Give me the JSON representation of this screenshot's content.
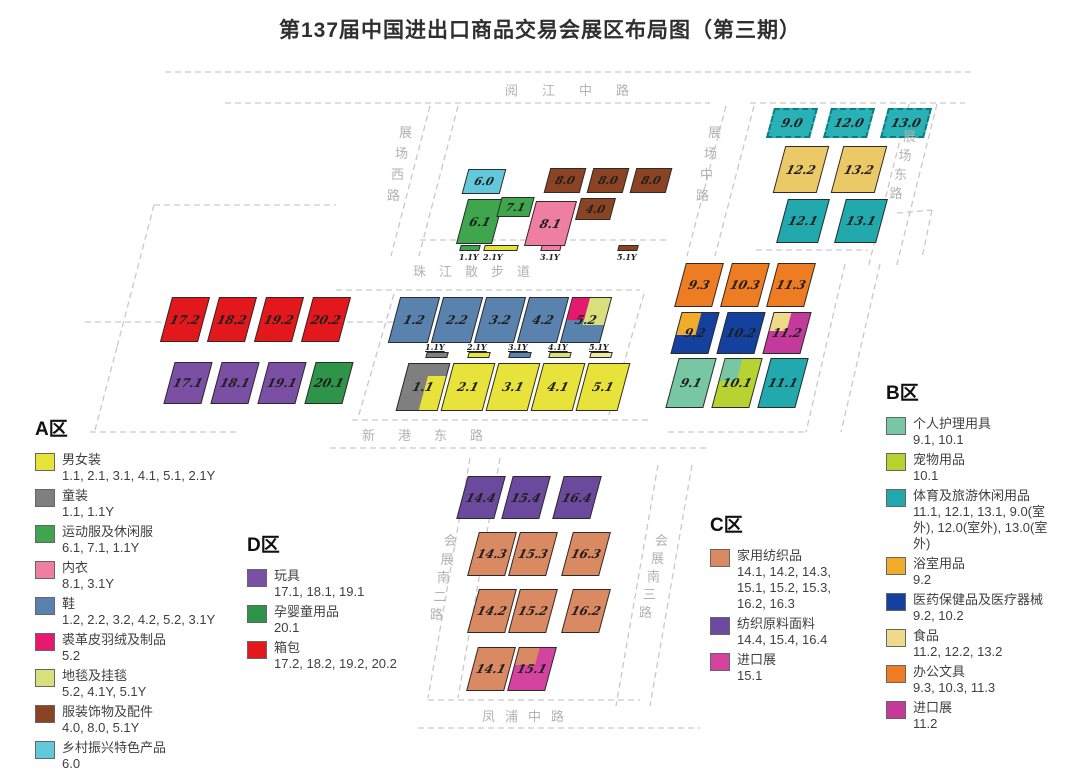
{
  "title": "第137届中国进出口商品交易会展区布局图（第三期）",
  "palette": {
    "yellow": "#e7e33b",
    "gray": "#7f7f7f",
    "green": "#3fa64e",
    "green2": "#2e9449",
    "pink": "#ee7fa2",
    "blue": "#5a82ae",
    "crimson": "#e5196d",
    "paleGreen": "#d9e07b",
    "paleYellow": "#ece9a0",
    "brown": "#8a4423",
    "lightCyan": "#62c8da",
    "red": "#e3181c",
    "purpleD": "#7b4fa4",
    "purpleC": "#6b4a9e",
    "salmon": "#d98a63",
    "magentaC": "#d4439f",
    "magentaB": "#c43a9c",
    "orange": "#ee7c23",
    "darkBlue": "#15419e",
    "golden": "#f2ac2b",
    "paleTan": "#efd98b",
    "goldenTan": "#ecc967",
    "teal": "#22a9ae",
    "lightTeal": "#77c6a4",
    "yellowGreen": "#b8d231",
    "tealDash": "#2ab1b5"
  },
  "map": {
    "halls": [
      {
        "key": "h9.0",
        "label": "9.0",
        "color": "tealDash",
        "dashed": true
      },
      {
        "key": "h12.0",
        "label": "12.0",
        "color": "tealDash",
        "dashed": true
      },
      {
        "key": "h13.0",
        "label": "13.0",
        "color": "tealDash",
        "dashed": true
      },
      {
        "key": "h12.2",
        "label": "12.2",
        "color": "goldenTan"
      },
      {
        "key": "h13.2",
        "label": "13.2",
        "color": "goldenTan"
      },
      {
        "key": "h12.1",
        "label": "12.1",
        "color": "teal"
      },
      {
        "key": "h13.1",
        "label": "13.1",
        "color": "teal"
      },
      {
        "key": "h6.0",
        "label": "6.0",
        "color": "lightCyan",
        "small": true
      },
      {
        "key": "h8.0a",
        "label": "8.0",
        "color": "brown",
        "small": true
      },
      {
        "key": "h8.0b",
        "label": "8.0",
        "color": "brown",
        "small": true
      },
      {
        "key": "h8.0c",
        "label": "8.0",
        "color": "brown",
        "small": true
      },
      {
        "key": "h6.1",
        "label": "6.1",
        "color": "green"
      },
      {
        "key": "h7.1",
        "label": "7.1",
        "color": "green",
        "small": true
      },
      {
        "key": "h8.1",
        "label": "8.1",
        "color": "pink"
      },
      {
        "key": "h4.0",
        "label": "4.0",
        "color": "brown",
        "small": true
      },
      {
        "key": "h17.2",
        "label": "17.2",
        "color": "red"
      },
      {
        "key": "h18.2",
        "label": "18.2",
        "color": "red"
      },
      {
        "key": "h19.2",
        "label": "19.2",
        "color": "red"
      },
      {
        "key": "h20.2",
        "label": "20.2",
        "color": "red"
      },
      {
        "key": "h17.1",
        "label": "17.1",
        "color": "purpleD"
      },
      {
        "key": "h18.1",
        "label": "18.1",
        "color": "purpleD"
      },
      {
        "key": "h19.1",
        "label": "19.1",
        "color": "purpleD"
      },
      {
        "key": "h20.1",
        "label": "20.1",
        "color": "green2"
      },
      {
        "key": "h1.2",
        "label": "1.2",
        "color": "blue"
      },
      {
        "key": "h2.2",
        "label": "2.2",
        "color": "blue"
      },
      {
        "key": "h3.2",
        "label": "3.2",
        "color": "blue"
      },
      {
        "key": "h4.2",
        "label": "4.2",
        "color": "blue"
      },
      {
        "key": "h5.2",
        "label": "5.2",
        "color": "blue",
        "patches": [
          {
            "color": "paleGreen",
            "l": 44,
            "t": 0,
            "w": 56,
            "h": 62
          },
          {
            "color": "crimson",
            "l": 0,
            "t": 0,
            "w": 44,
            "h": 50
          }
        ]
      },
      {
        "key": "h1.1",
        "label": "1.1",
        "color": "gray",
        "patches": [
          {
            "color": "yellow",
            "l": 55,
            "t": 25,
            "w": 45,
            "h": 75
          }
        ]
      },
      {
        "key": "h2.1",
        "label": "2.1",
        "color": "yellow"
      },
      {
        "key": "h3.1",
        "label": "3.1",
        "color": "yellow"
      },
      {
        "key": "h4.1",
        "label": "4.1",
        "color": "yellow"
      },
      {
        "key": "h5.1",
        "label": "5.1",
        "color": "yellow"
      },
      {
        "key": "h9.3",
        "label": "9.3",
        "color": "orange"
      },
      {
        "key": "h10.3",
        "label": "10.3",
        "color": "orange"
      },
      {
        "key": "h11.3",
        "label": "11.3",
        "color": "orange"
      },
      {
        "key": "h9.2",
        "label": "9.2",
        "color": "darkBlue",
        "patches": [
          {
            "color": "golden",
            "l": 0,
            "t": 0,
            "w": 52,
            "h": 55
          }
        ]
      },
      {
        "key": "h10.2",
        "label": "10.2",
        "color": "darkBlue"
      },
      {
        "key": "h11.2",
        "label": "11.2",
        "color": "magentaB",
        "patches": [
          {
            "color": "paleTan",
            "l": 0,
            "t": 0,
            "w": 46,
            "h": 45
          }
        ]
      },
      {
        "key": "h9.1",
        "label": "9.1",
        "color": "lightTeal"
      },
      {
        "key": "h10.1",
        "label": "10.1",
        "color": "yellowGreen",
        "patches": [
          {
            "color": "lightTeal",
            "l": 0,
            "t": 0,
            "w": 46,
            "h": 45
          }
        ]
      },
      {
        "key": "h11.1",
        "label": "11.1",
        "color": "teal"
      },
      {
        "key": "h14.4",
        "label": "14.4",
        "color": "purpleC"
      },
      {
        "key": "h15.4",
        "label": "15.4",
        "color": "purpleC"
      },
      {
        "key": "h16.4",
        "label": "16.4",
        "color": "purpleC"
      },
      {
        "key": "h14.3",
        "label": "14.3",
        "color": "salmon"
      },
      {
        "key": "h15.3",
        "label": "15.3",
        "color": "salmon"
      },
      {
        "key": "h16.3",
        "label": "16.3",
        "color": "salmon"
      },
      {
        "key": "h14.2",
        "label": "14.2",
        "color": "salmon"
      },
      {
        "key": "h15.2",
        "label": "15.2",
        "color": "salmon"
      },
      {
        "key": "h16.2",
        "label": "16.2",
        "color": "salmon"
      },
      {
        "key": "h14.1",
        "label": "14.1",
        "color": "salmon"
      },
      {
        "key": "h15.1",
        "label": "15.1",
        "color": "magentaC",
        "patches": [
          {
            "color": "salmon",
            "l": 0,
            "t": 0,
            "w": 56,
            "h": 40
          }
        ]
      }
    ],
    "strips": [
      {
        "key": "s1.1Yt",
        "label": "1.1Y",
        "color": "green",
        "labelPos": "below"
      },
      {
        "key": "s2.1Yt",
        "label": "2.1Y",
        "color": "yellow",
        "labelPos": "below"
      },
      {
        "key": "s3.1Yt",
        "label": "3.1Y",
        "color": "pink",
        "labelPos": "below"
      },
      {
        "key": "s5.1Yt",
        "label": "5.1Y",
        "color": "brown",
        "labelPos": "below"
      },
      {
        "key": "s1.1Ym",
        "label": "1.1Y",
        "color": "gray",
        "labelPos": "above"
      },
      {
        "key": "s2.1Ym",
        "label": "2.1Y",
        "color": "yellow",
        "labelPos": "above"
      },
      {
        "key": "s3.1Ym",
        "label": "3.1Y",
        "color": "blue",
        "labelPos": "above"
      },
      {
        "key": "s4.1Ym",
        "label": "4.1Y",
        "color": "paleGreen",
        "labelPos": "above"
      },
      {
        "key": "s5.1Ym",
        "label": "5.1Y",
        "color": "paleYellow",
        "labelPos": "above"
      }
    ],
    "roads": [
      {
        "key": "yuejiang",
        "label": "阅江中路",
        "dir": "h"
      },
      {
        "key": "zhujiang",
        "label": "珠江散步道",
        "dir": "h"
      },
      {
        "key": "xingang",
        "label": "新港东路",
        "dir": "h"
      },
      {
        "key": "fengpu",
        "label": "凤浦中路",
        "dir": "h"
      },
      {
        "key": "zhanxi",
        "label": "展场西路",
        "dir": "v"
      },
      {
        "key": "zhanzhong",
        "label": "展场中路",
        "dir": "v"
      },
      {
        "key": "zhandong",
        "label": "展场东路",
        "dir": "v"
      },
      {
        "key": "huizhan2",
        "label": "会展南二路",
        "dir": "v"
      },
      {
        "key": "huizhan3",
        "label": "会展南三路",
        "dir": "v"
      }
    ]
  },
  "legends": [
    {
      "key": "A",
      "title": "A区",
      "items": [
        {
          "color": "yellow",
          "name": "男女装",
          "codes": [
            "1.1, 2.1, 3.1, 4.1, 5.1, 2.1Y"
          ]
        },
        {
          "color": "gray",
          "name": "童装",
          "codes": [
            "1.1, 1.1Y"
          ]
        },
        {
          "color": "green",
          "name": "运动服及休闲服",
          "codes": [
            "6.1, 7.1, 1.1Y"
          ]
        },
        {
          "color": "pink",
          "name": "内衣",
          "codes": [
            "8.1, 3.1Y"
          ]
        },
        {
          "color": "blue",
          "name": "鞋",
          "codes": [
            "1.2, 2.2, 3.2, 4.2, 5.2, 3.1Y"
          ]
        },
        {
          "color": "crimson",
          "name": "裘革皮羽绒及制品",
          "codes": [
            "5.2"
          ]
        },
        {
          "color": "paleGreen",
          "name": "地毯及挂毯",
          "codes": [
            "5.2, 4.1Y, 5.1Y"
          ]
        },
        {
          "color": "brown",
          "name": "服装饰物及配件",
          "codes": [
            "4.0, 8.0, 5.1Y"
          ]
        },
        {
          "color": "lightCyan",
          "name": "乡村振兴特色产品",
          "codes": [
            "6.0"
          ]
        }
      ]
    },
    {
      "key": "B",
      "title": "B区",
      "items": [
        {
          "color": "lightTeal",
          "name": "个人护理用具",
          "codes": [
            "9.1, 10.1"
          ]
        },
        {
          "color": "yellowGreen",
          "name": "宠物用品",
          "codes": [
            "10.1"
          ]
        },
        {
          "color": "teal",
          "name": "体育及旅游休闲用品",
          "codes": [
            "11.1, 12.1, 13.1, 9.0(室",
            "外), 12.0(室外), 13.0(室",
            "外)"
          ]
        },
        {
          "color": "golden",
          "name": "浴室用品",
          "codes": [
            "9.2"
          ]
        },
        {
          "color": "darkBlue",
          "name": "医药保健品及医疗器械",
          "codes": [
            "9.2, 10.2"
          ]
        },
        {
          "color": "paleTan",
          "name": "食品",
          "codes": [
            "11.2, 12.2, 13.2"
          ]
        },
        {
          "color": "orange",
          "name": "办公文具",
          "codes": [
            "9.3, 10.3, 11.3"
          ]
        },
        {
          "color": "magentaB",
          "name": "进口展",
          "codes": [
            "11.2"
          ]
        }
      ]
    },
    {
      "key": "C",
      "title": "C区",
      "items": [
        {
          "color": "salmon",
          "name": "家用纺织品",
          "codes": [
            "14.1, 14.2, 14.3,",
            "15.1, 15.2, 15.3,",
            "16.2, 16.3"
          ]
        },
        {
          "color": "purpleC",
          "name": "纺织原料面料",
          "codes": [
            "14.4, 15.4, 16.4"
          ]
        },
        {
          "color": "magentaC",
          "name": "进口展",
          "codes": [
            "15.1"
          ]
        }
      ]
    },
    {
      "key": "D",
      "title": "D区",
      "items": [
        {
          "color": "purpleD",
          "name": "玩具",
          "codes": [
            "17.1, 18.1, 19.1"
          ]
        },
        {
          "color": "green2",
          "name": "孕婴童用品",
          "codes": [
            "20.1"
          ]
        },
        {
          "color": "red",
          "name": "箱包",
          "codes": [
            "17.2, 18.2, 19.2, 20.2"
          ]
        }
      ]
    }
  ]
}
